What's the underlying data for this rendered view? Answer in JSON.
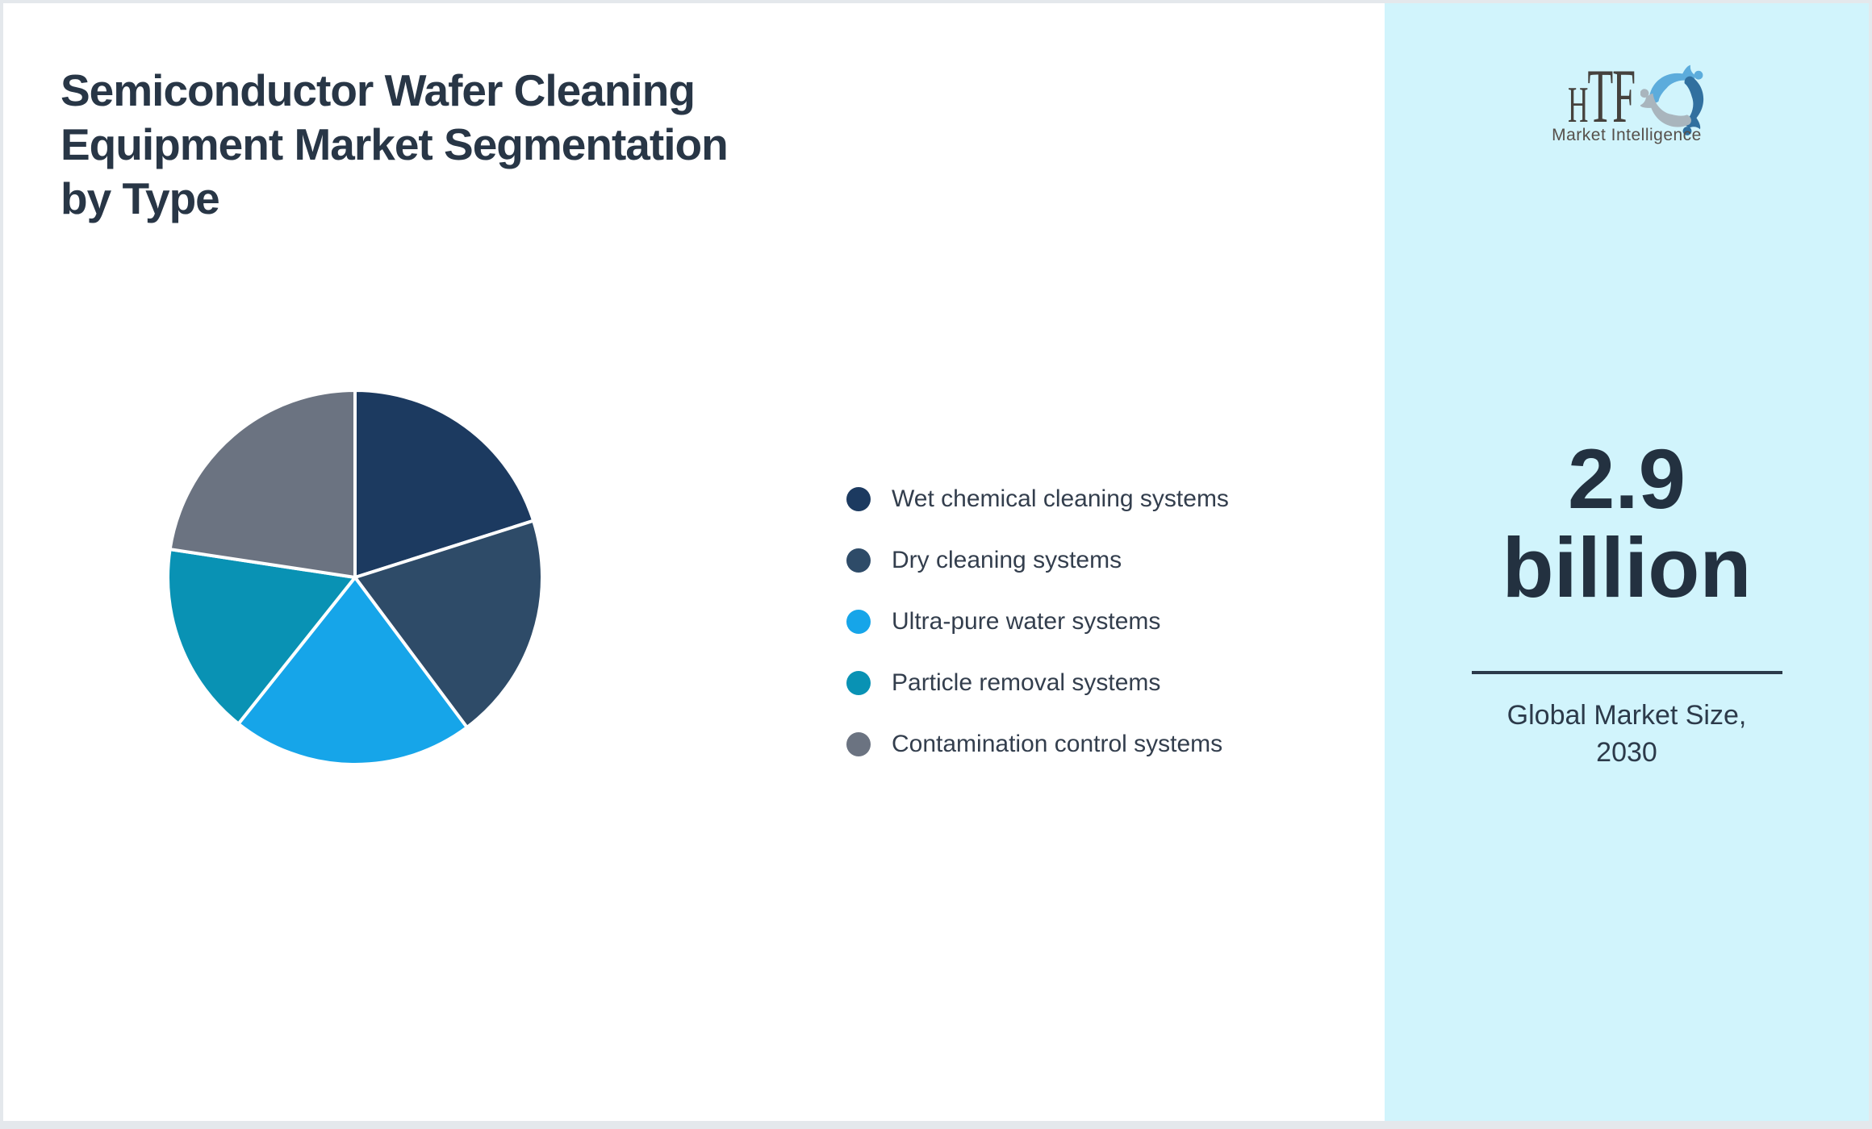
{
  "page": {
    "background": "#ffffff",
    "border_color": "#e4e8ec"
  },
  "header": {
    "title": "Semiconductor Wafer Cleaning Equipment Market Segmentation by Type",
    "title_lines": [
      "Semiconductor Wafer Cleaning",
      "Equipment Market Segmentation",
      "by Type"
    ],
    "title_color": "#283646"
  },
  "chart_data": {
    "type": "pie",
    "title": "Semiconductor Wafer Cleaning Equipment Market Segmentation by Type",
    "labels": [
      "Wet chemical cleaning systems",
      "Dry cleaning systems",
      "Ultra-pure water systems",
      "Particle removal systems",
      "Contamination control systems"
    ],
    "values": [
      20.1,
      19.7,
      20.9,
      16.7,
      22.6
    ],
    "unit": "% share (estimated from arc angles)",
    "colors": [
      "#1c3a60",
      "#2e4b68",
      "#16a5e9",
      "#0992b4",
      "#6b7381"
    ],
    "start_angle_deg": 0,
    "direction": "clockwise",
    "slice_border_color": "#ffffff",
    "legend_position": "right",
    "data_labels": "none"
  },
  "legend": {
    "text_color": "#333e4d"
  },
  "sidebar": {
    "background": "#d1f4fc",
    "logo": {
      "text": "HTF",
      "subtitle": "Market Intelligence",
      "text_color": "#45413d",
      "subtitle_color": "#56504b",
      "swirl_colors": {
        "light_blue": "#5cacdc",
        "gray": "#a9b5bd",
        "dark_blue": "#31709f"
      }
    },
    "market_size": {
      "value": "2.9 billion",
      "value_lines": [
        "2.9",
        "billion"
      ],
      "label": "Global Market Size, 2030",
      "label_lines": [
        "Global Market Size,",
        "2030"
      ],
      "value_color": "#233140",
      "divider_color": "#2b3a4a",
      "label_color": "#2c3a4a"
    }
  }
}
